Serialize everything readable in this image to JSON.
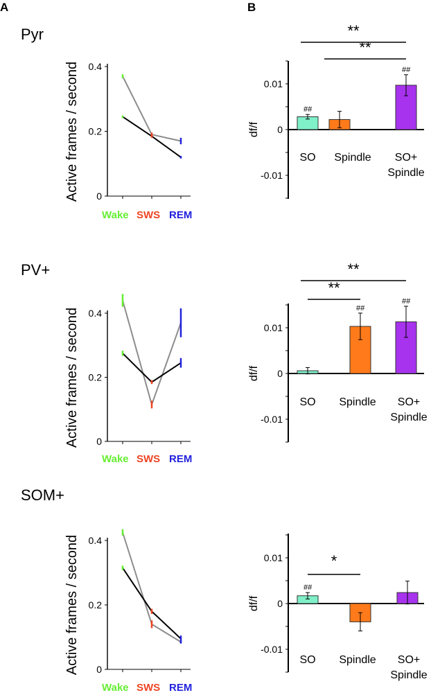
{
  "panel_labels": [
    "A",
    "B"
  ],
  "colors": {
    "wake": "#66ee33",
    "sws": "#ee4422",
    "rem": "#2222dd",
    "so_bar": "#7ff0c8",
    "spindle_bar": "#ff7a1a",
    "so_spindle_bar": "#a833ee",
    "gray_line": "#8c8c8c",
    "black_line": "#000000"
  },
  "chart_data": [
    {
      "type": "line",
      "title": "Pyr",
      "ylabel": "Active frames / second",
      "ylim": [
        0,
        0.4
      ],
      "yticks": [
        "0",
        "0.2",
        "0.4"
      ],
      "categories": [
        "Wake",
        "SWS",
        "REM"
      ],
      "series": [
        {
          "values": [
            0.37,
            0.19,
            0.17
          ],
          "err": [
            0.006,
            0.006,
            0.01
          ],
          "style": "gray"
        },
        {
          "values": [
            0.245,
            0.185,
            0.12
          ],
          "err": [
            0.004,
            0.005,
            0.004
          ],
          "style": "black"
        }
      ]
    },
    {
      "type": "bar",
      "ylabel": "df/f",
      "ylim": [
        -0.015,
        0.015
      ],
      "yticks": [
        "0.01",
        "0",
        "-0.01"
      ],
      "categories": [
        "SO",
        "Spindle",
        "SO+ Spindle"
      ],
      "category_lines": [
        [
          "SO"
        ],
        [
          "Spindle"
        ],
        [
          "SO+",
          "Spindle"
        ]
      ],
      "values": [
        0.0028,
        0.0022,
        0.0097
      ],
      "err": [
        0.0005,
        0.0018,
        0.0023
      ],
      "marks": [
        "##",
        "",
        "##"
      ],
      "significance": [
        {
          "from": 0,
          "to": 2,
          "label": "**"
        },
        {
          "from": 1,
          "to": 2,
          "label": "**"
        }
      ]
    },
    {
      "type": "line",
      "title": "PV+",
      "ylabel": "Active frames / second",
      "ylim": [
        0,
        0.4
      ],
      "yticks": [
        "0",
        "0.2",
        "0.4"
      ],
      "categories": [
        "Wake",
        "SWS",
        "REM"
      ],
      "series": [
        {
          "values": [
            0.44,
            0.115,
            0.37
          ],
          "err": [
            0.02,
            0.012,
            0.045
          ],
          "style": "gray"
        },
        {
          "values": [
            0.275,
            0.185,
            0.245
          ],
          "err": [
            0.008,
            0.006,
            0.015
          ],
          "style": "black"
        }
      ]
    },
    {
      "type": "bar",
      "ylabel": "df/f",
      "ylim": [
        -0.015,
        0.015
      ],
      "yticks": [
        "0.01",
        "0",
        "-0.01"
      ],
      "categories": [
        "SO",
        "Spindle",
        "SO+ Spindle"
      ],
      "category_lines": [
        [
          "SO"
        ],
        [
          "Spindle"
        ],
        [
          "SO+",
          "Spindle"
        ]
      ],
      "values": [
        0.0006,
        0.0103,
        0.0113
      ],
      "err": [
        0.0007,
        0.0029,
        0.0034
      ],
      "marks": [
        "",
        "##",
        "##"
      ],
      "significance": [
        {
          "from": 0,
          "to": 2,
          "label": "**"
        },
        {
          "from": 0,
          "to": 1,
          "label": "**"
        }
      ]
    },
    {
      "type": "line",
      "title": "SOM+",
      "ylabel": "Active frames / second",
      "ylim": [
        0,
        0.4
      ],
      "yticks": [
        "0",
        "0.2",
        "0.4"
      ],
      "categories": [
        "Wake",
        "SWS",
        "REM"
      ],
      "series": [
        {
          "values": [
            0.425,
            0.14,
            0.085
          ],
          "err": [
            0.01,
            0.012,
            0.005
          ],
          "style": "gray"
        },
        {
          "values": [
            0.315,
            0.18,
            0.095
          ],
          "err": [
            0.007,
            0.008,
            0.01
          ],
          "style": "black"
        }
      ]
    },
    {
      "type": "bar",
      "ylabel": "df/f",
      "ylim": [
        -0.015,
        0.015
      ],
      "yticks": [
        "0.01",
        "0",
        "-0.01"
      ],
      "categories": [
        "SO",
        "Spindle",
        "SO+ Spindle"
      ],
      "category_lines": [
        [
          "SO"
        ],
        [
          "Spindle"
        ],
        [
          "SO+",
          "Spindle"
        ]
      ],
      "values": [
        0.0017,
        -0.004,
        0.0024
      ],
      "err": [
        0.0007,
        0.002,
        0.0025
      ],
      "marks": [
        "##",
        "",
        ""
      ],
      "significance": [
        {
          "from": 0,
          "to": 1,
          "label": "*"
        }
      ]
    }
  ]
}
